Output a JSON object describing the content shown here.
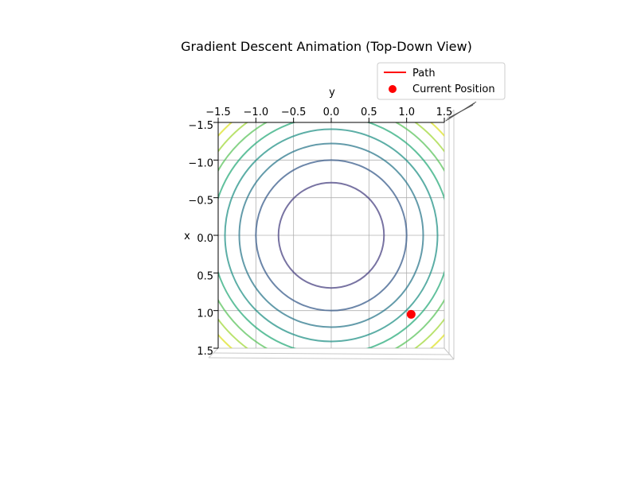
{
  "chart_data": {
    "type": "contour",
    "title": "Gradient Descent Animation (Top-Down View)",
    "xlabel": "x",
    "ylabel": "y",
    "x_range": [
      -1.5,
      1.5
    ],
    "y_range": [
      -1.5,
      1.5
    ],
    "x_ticks": [
      "1.5",
      "1.0",
      "0.5",
      "0.0",
      "0.5",
      "1.0",
      "1.5"
    ],
    "y_ticks": [
      "−1.5",
      "−1.0",
      "−0.5",
      "0.0",
      "0.5",
      "1.0",
      "1.5"
    ],
    "grid": true,
    "function": "x^2 + y^2",
    "contour_levels": [
      {
        "radius": 0.7,
        "color": "#4b4483"
      },
      {
        "radius": 1.0,
        "color": "#3b5d8c"
      },
      {
        "radius": 1.22,
        "color": "#2f798d"
      },
      {
        "radius": 1.41,
        "color": "#259388"
      },
      {
        "radius": 1.58,
        "color": "#2cac7c"
      },
      {
        "radius": 1.73,
        "color": "#5dc45f"
      },
      {
        "radius": 1.87,
        "color": "#a2d83c"
      },
      {
        "radius": 2.0,
        "color": "#dde12a"
      }
    ],
    "series": [
      {
        "name": "Path",
        "type": "line",
        "color": "#ff0000",
        "points": []
      },
      {
        "name": "Current Position",
        "type": "scatter",
        "color": "#ff0000",
        "points": [
          {
            "x": 1.05,
            "y": 1.06
          }
        ]
      }
    ],
    "legend_placement": "top-right"
  }
}
